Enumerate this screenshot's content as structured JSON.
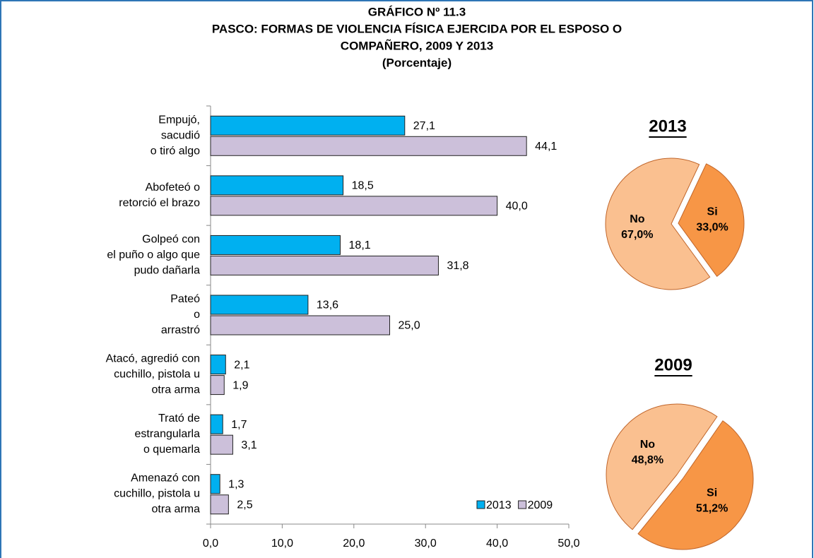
{
  "chart_data": [
    {
      "type": "hbar",
      "title": [
        "GRÁFICO Nº 11.3",
        "PASCO: FORMAS DE VIOLENCIA FÍSICA EJERCIDA POR EL ESPOSO O",
        "COMPAÑERO, 2009 Y 2013"
      ],
      "subtitle": "(Porcentaje)",
      "categories": [
        "Empujó,\nsacudió\no tiró algo",
        "Abofeteó o\nretorció el brazo",
        "Golpeó con\nel puño o algo que\npudo dañarla",
        "Pateó\no\narrastró",
        "Atacó, agredió con\ncuchillo, pistola u\notra arma",
        "Trató de\nestrangularla\no quemarla",
        "Amenazó con\ncuchillo, pistola u\notra arma"
      ],
      "series": [
        {
          "name": "2013",
          "color": "#00b0f0",
          "values": [
            27.1,
            18.5,
            18.1,
            13.6,
            2.1,
            1.7,
            1.3
          ],
          "value_labels": [
            "27,1",
            "18,5",
            "18,1",
            "13,6",
            "2,1",
            "1,7",
            "1,3"
          ]
        },
        {
          "name": "2009",
          "color": "#ccc0da",
          "values": [
            44.1,
            40.0,
            31.8,
            25.0,
            1.9,
            3.1,
            2.5
          ],
          "value_labels": [
            "44,1",
            "40,0",
            "31,8",
            "25,0",
            "1,9",
            "3,1",
            "2,5"
          ]
        }
      ],
      "xlim": [
        0,
        50
      ],
      "xticks": [
        {
          "value": 0,
          "label": "0,0"
        },
        {
          "value": 10,
          "label": "10,0"
        },
        {
          "value": 20,
          "label": "20,0"
        },
        {
          "value": 30,
          "label": "30,0"
        },
        {
          "value": 40,
          "label": "40,0"
        },
        {
          "value": 50,
          "label": "50,0"
        }
      ],
      "legend": "lower right"
    },
    {
      "type": "pie",
      "title": "2013",
      "categories": [
        "No",
        "Si"
      ],
      "values": [
        67.0,
        33.0
      ],
      "value_labels": [
        "67,0%",
        "33,0%"
      ],
      "colors": [
        "#fac090",
        "#f79646"
      ]
    },
    {
      "type": "pie",
      "title": "2009",
      "categories": [
        "No",
        "Si"
      ],
      "values": [
        48.8,
        51.2
      ],
      "value_labels": [
        "48,8%",
        "51,2%"
      ],
      "colors": [
        "#fac090",
        "#f79646"
      ]
    }
  ]
}
